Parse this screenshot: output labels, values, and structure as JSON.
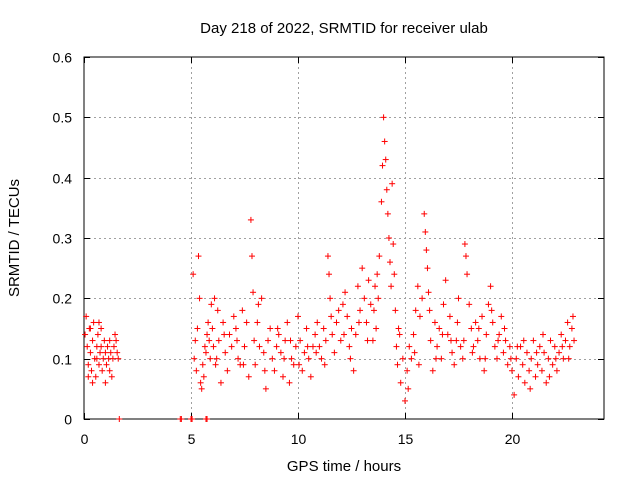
{
  "chart_data": {
    "type": "scatter",
    "title": "Day 218 of 2022, SRMTID for receiver ulab",
    "xlabel": "GPS time / hours",
    "ylabel": "SRMTID / TECUs",
    "xlim": [
      0,
      24.3
    ],
    "ylim": [
      0,
      0.6
    ],
    "xticks": [
      0,
      5,
      10,
      15,
      20
    ],
    "xtick_labels": [
      "0",
      "5",
      "10",
      "15",
      "20"
    ],
    "yticks": [
      0,
      0.1,
      0.2,
      0.3,
      0.4,
      0.5,
      0.6
    ],
    "ytick_labels": [
      "0",
      "0.1",
      "0.2",
      "0.3",
      "0.4",
      "0.5",
      "0.6"
    ],
    "grid": true,
    "marker": "plus",
    "color": "#ff0000",
    "series": [
      {
        "name": "SRMTID",
        "points": [
          [
            0.05,
            0.14
          ],
          [
            0.1,
            0.17
          ],
          [
            0.15,
            0.12
          ],
          [
            0.2,
            0.09
          ],
          [
            0.25,
            0.15
          ],
          [
            0.3,
            0.11
          ],
          [
            0.35,
            0.08
          ],
          [
            0.4,
            0.13
          ],
          [
            0.45,
            0.16
          ],
          [
            0.5,
            0.1
          ],
          [
            0.55,
            0.07
          ],
          [
            0.6,
            0.12
          ],
          [
            0.65,
            0.14
          ],
          [
            0.7,
            0.09
          ],
          [
            0.75,
            0.11
          ],
          [
            0.8,
            0.15
          ],
          [
            0.85,
            0.08
          ],
          [
            0.9,
            0.1
          ],
          [
            0.95,
            0.13
          ],
          [
            1.0,
            0.06
          ],
          [
            1.05,
            0.09
          ],
          [
            1.1,
            0.12
          ],
          [
            1.15,
            0.1
          ],
          [
            1.2,
            0.08
          ],
          [
            1.25,
            0.11
          ],
          [
            1.3,
            0.07
          ],
          [
            1.35,
            0.1
          ],
          [
            1.4,
            0.12
          ],
          [
            1.45,
            0.14
          ],
          [
            1.5,
            0.13
          ],
          [
            1.55,
            0.11
          ],
          [
            1.6,
            0.1
          ],
          [
            0.2,
            0.07
          ],
          [
            0.4,
            0.06
          ],
          [
            0.6,
            0.1
          ],
          [
            0.8,
            0.12
          ],
          [
            1.0,
            0.11
          ],
          [
            1.2,
            0.13
          ],
          [
            0.3,
            0.15
          ],
          [
            0.7,
            0.16
          ],
          [
            1.65,
            0.0
          ],
          [
            4.5,
            0.0
          ],
          [
            4.55,
            0.0
          ],
          [
            5.0,
            0.0
          ],
          [
            5.05,
            0.0
          ],
          [
            5.7,
            0.0
          ],
          [
            5.75,
            0.0
          ],
          [
            5.1,
            0.24
          ],
          [
            5.15,
            0.1
          ],
          [
            5.2,
            0.13
          ],
          [
            5.25,
            0.08
          ],
          [
            5.3,
            0.15
          ],
          [
            5.35,
            0.27
          ],
          [
            5.4,
            0.2
          ],
          [
            5.45,
            0.06
          ],
          [
            5.5,
            0.05
          ],
          [
            5.55,
            0.09
          ],
          [
            5.6,
            0.07
          ],
          [
            5.65,
            0.12
          ],
          [
            5.7,
            0.11
          ],
          [
            5.75,
            0.14
          ],
          [
            5.8,
            0.16
          ],
          [
            5.85,
            0.13
          ],
          [
            5.9,
            0.1
          ],
          [
            5.95,
            0.19
          ],
          [
            6.0,
            0.15
          ],
          [
            6.05,
            0.12
          ],
          [
            6.1,
            0.2
          ],
          [
            6.15,
            0.09
          ],
          [
            6.2,
            0.1
          ],
          [
            6.3,
            0.13
          ],
          [
            6.4,
            0.06
          ],
          [
            6.5,
            0.16
          ],
          [
            6.6,
            0.11
          ],
          [
            6.7,
            0.08
          ],
          [
            6.8,
            0.14
          ],
          [
            6.9,
            0.12
          ],
          [
            7.0,
            0.17
          ],
          [
            7.1,
            0.15
          ],
          [
            7.2,
            0.1
          ],
          [
            7.3,
            0.09
          ],
          [
            7.4,
            0.18
          ],
          [
            7.5,
            0.12
          ],
          [
            7.6,
            0.16
          ],
          [
            7.7,
            0.07
          ],
          [
            7.8,
            0.33
          ],
          [
            7.85,
            0.27
          ],
          [
            7.9,
            0.21
          ],
          [
            7.95,
            0.13
          ],
          [
            8.0,
            0.09
          ],
          [
            8.1,
            0.16
          ],
          [
            8.2,
            0.12
          ],
          [
            8.3,
            0.2
          ],
          [
            8.4,
            0.11
          ],
          [
            8.5,
            0.05
          ],
          [
            8.6,
            0.13
          ],
          [
            8.7,
            0.15
          ],
          [
            8.8,
            0.1
          ],
          [
            8.9,
            0.08
          ],
          [
            9.0,
            0.12
          ],
          [
            9.1,
            0.14
          ],
          [
            9.2,
            0.11
          ],
          [
            9.3,
            0.07
          ],
          [
            9.4,
            0.13
          ],
          [
            9.5,
            0.16
          ],
          [
            9.6,
            0.06
          ],
          [
            9.7,
            0.1
          ],
          [
            9.8,
            0.09
          ],
          [
            9.9,
            0.12
          ],
          [
            10.0,
            0.17
          ],
          [
            10.1,
            0.13
          ],
          [
            10.2,
            0.08
          ],
          [
            10.3,
            0.11
          ],
          [
            10.4,
            0.15
          ],
          [
            10.5,
            0.1
          ],
          [
            10.6,
            0.07
          ],
          [
            10.7,
            0.12
          ],
          [
            10.8,
            0.14
          ],
          [
            10.9,
            0.16
          ],
          [
            11.0,
            0.12
          ],
          [
            11.1,
            0.1
          ],
          [
            11.2,
            0.15
          ],
          [
            11.3,
            0.13
          ],
          [
            11.4,
            0.27
          ],
          [
            11.45,
            0.24
          ],
          [
            11.5,
            0.2
          ],
          [
            11.6,
            0.14
          ],
          [
            11.7,
            0.11
          ],
          [
            11.8,
            0.16
          ],
          [
            11.9,
            0.18
          ],
          [
            12.0,
            0.13
          ],
          [
            12.1,
            0.19
          ],
          [
            12.2,
            0.21
          ],
          [
            12.3,
            0.17
          ],
          [
            12.4,
            0.12
          ],
          [
            12.5,
            0.15
          ],
          [
            12.6,
            0.08
          ],
          [
            12.7,
            0.14
          ],
          [
            12.8,
            0.22
          ],
          [
            12.9,
            0.18
          ],
          [
            13.0,
            0.25
          ],
          [
            13.1,
            0.2
          ],
          [
            13.2,
            0.16
          ],
          [
            13.3,
            0.23
          ],
          [
            13.4,
            0.19
          ],
          [
            13.5,
            0.13
          ],
          [
            13.6,
            0.22
          ],
          [
            13.7,
            0.24
          ],
          [
            13.8,
            0.27
          ],
          [
            13.9,
            0.36
          ],
          [
            13.95,
            0.42
          ],
          [
            14.0,
            0.5
          ],
          [
            14.05,
            0.46
          ],
          [
            14.1,
            0.43
          ],
          [
            14.15,
            0.38
          ],
          [
            14.2,
            0.34
          ],
          [
            14.25,
            0.3
          ],
          [
            14.3,
            0.26
          ],
          [
            14.35,
            0.22
          ],
          [
            14.4,
            0.39
          ],
          [
            14.45,
            0.29
          ],
          [
            14.5,
            0.24
          ],
          [
            14.55,
            0.18
          ],
          [
            14.6,
            0.12
          ],
          [
            14.7,
            0.15
          ],
          [
            14.8,
            0.06
          ],
          [
            14.9,
            0.1
          ],
          [
            15.0,
            0.03
          ],
          [
            15.1,
            0.08
          ],
          [
            15.2,
            0.12
          ],
          [
            15.3,
            0.1
          ],
          [
            15.4,
            0.14
          ],
          [
            15.5,
            0.18
          ],
          [
            15.6,
            0.22
          ],
          [
            15.7,
            0.17
          ],
          [
            15.8,
            0.2
          ],
          [
            15.9,
            0.34
          ],
          [
            15.95,
            0.31
          ],
          [
            16.0,
            0.28
          ],
          [
            16.05,
            0.25
          ],
          [
            16.1,
            0.21
          ],
          [
            16.2,
            0.13
          ],
          [
            16.3,
            0.08
          ],
          [
            16.4,
            0.16
          ],
          [
            16.5,
            0.12
          ],
          [
            16.6,
            0.15
          ],
          [
            16.7,
            0.1
          ],
          [
            16.8,
            0.19
          ],
          [
            16.9,
            0.23
          ],
          [
            17.0,
            0.14
          ],
          [
            17.1,
            0.17
          ],
          [
            17.2,
            0.11
          ],
          [
            17.3,
            0.09
          ],
          [
            17.4,
            0.13
          ],
          [
            17.5,
            0.2
          ],
          [
            17.6,
            0.12
          ],
          [
            17.7,
            0.1
          ],
          [
            17.8,
            0.29
          ],
          [
            17.85,
            0.27
          ],
          [
            17.9,
            0.24
          ],
          [
            18.0,
            0.19
          ],
          [
            18.1,
            0.15
          ],
          [
            18.2,
            0.12
          ],
          [
            18.3,
            0.16
          ],
          [
            18.4,
            0.13
          ],
          [
            18.5,
            0.1
          ],
          [
            18.6,
            0.17
          ],
          [
            18.7,
            0.08
          ],
          [
            18.8,
            0.14
          ],
          [
            18.9,
            0.19
          ],
          [
            19.0,
            0.22
          ],
          [
            19.1,
            0.16
          ],
          [
            19.2,
            0.12
          ],
          [
            19.3,
            0.1
          ],
          [
            19.4,
            0.14
          ],
          [
            19.5,
            0.17
          ],
          [
            19.6,
            0.11
          ],
          [
            19.7,
            0.13
          ],
          [
            19.8,
            0.09
          ],
          [
            19.9,
            0.12
          ],
          [
            20.0,
            0.08
          ],
          [
            20.1,
            0.04
          ],
          [
            20.2,
            0.1
          ],
          [
            20.3,
            0.07
          ],
          [
            20.4,
            0.12
          ],
          [
            20.5,
            0.09
          ],
          [
            20.6,
            0.06
          ],
          [
            20.7,
            0.11
          ],
          [
            20.8,
            0.08
          ],
          [
            20.9,
            0.1
          ],
          [
            21.0,
            0.13
          ],
          [
            21.1,
            0.07
          ],
          [
            21.2,
            0.09
          ],
          [
            21.3,
            0.12
          ],
          [
            21.4,
            0.08
          ],
          [
            21.5,
            0.11
          ],
          [
            21.6,
            0.06
          ],
          [
            21.7,
            0.1
          ],
          [
            21.8,
            0.13
          ],
          [
            21.9,
            0.09
          ],
          [
            22.0,
            0.12
          ],
          [
            22.1,
            0.08
          ],
          [
            22.2,
            0.11
          ],
          [
            22.3,
            0.14
          ],
          [
            22.4,
            0.1
          ],
          [
            22.5,
            0.13
          ],
          [
            22.6,
            0.16
          ],
          [
            22.7,
            0.12
          ],
          [
            22.8,
            0.15
          ],
          [
            22.85,
            0.17
          ],
          [
            22.9,
            0.13
          ],
          [
            6.25,
            0.18
          ],
          [
            6.55,
            0.14
          ],
          [
            7.15,
            0.13
          ],
          [
            7.45,
            0.09
          ],
          [
            8.15,
            0.19
          ],
          [
            8.45,
            0.08
          ],
          [
            9.05,
            0.15
          ],
          [
            9.35,
            0.1
          ],
          [
            9.65,
            0.13
          ],
          [
            10.05,
            0.09
          ],
          [
            10.45,
            0.12
          ],
          [
            10.85,
            0.11
          ],
          [
            11.25,
            0.09
          ],
          [
            11.55,
            0.17
          ],
          [
            12.15,
            0.14
          ],
          [
            12.45,
            0.1
          ],
          [
            12.85,
            0.16
          ],
          [
            13.25,
            0.13
          ],
          [
            13.55,
            0.18
          ],
          [
            13.65,
            0.15
          ],
          [
            13.75,
            0.2
          ],
          [
            14.65,
            0.09
          ],
          [
            14.75,
            0.14
          ],
          [
            15.15,
            0.05
          ],
          [
            15.45,
            0.11
          ],
          [
            15.65,
            0.09
          ],
          [
            16.15,
            0.18
          ],
          [
            16.45,
            0.1
          ],
          [
            16.75,
            0.14
          ],
          [
            17.15,
            0.13
          ],
          [
            17.45,
            0.16
          ],
          [
            17.75,
            0.13
          ],
          [
            18.15,
            0.11
          ],
          [
            18.45,
            0.15
          ],
          [
            18.75,
            0.1
          ],
          [
            19.05,
            0.18
          ],
          [
            19.35,
            0.13
          ],
          [
            19.65,
            0.15
          ],
          [
            19.95,
            0.1
          ],
          [
            20.25,
            0.12
          ],
          [
            20.55,
            0.13
          ],
          [
            20.85,
            0.05
          ],
          [
            21.15,
            0.11
          ],
          [
            21.45,
            0.14
          ],
          [
            21.75,
            0.07
          ],
          [
            22.05,
            0.1
          ],
          [
            22.35,
            0.12
          ],
          [
            22.65,
            0.1
          ]
        ]
      }
    ]
  }
}
